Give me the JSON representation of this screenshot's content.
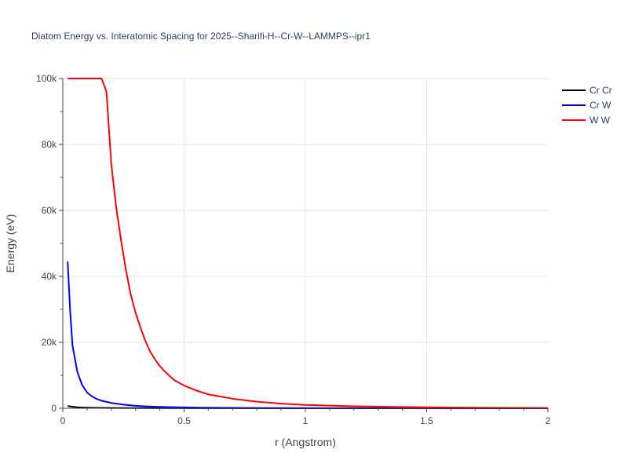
{
  "chart_data": {
    "type": "line",
    "title": "Diatom Energy vs. Interatomic Spacing for 2025--Sharifi-H--Cr-W--LAMMPS--ipr1",
    "xlabel": "r (Angstrom)",
    "ylabel": "Energy (eV)",
    "xlim": [
      0,
      2
    ],
    "ylim": [
      0,
      100000
    ],
    "x_ticks": [
      0,
      0.5,
      1,
      1.5,
      2
    ],
    "x_tick_labels": [
      "0",
      "0.5",
      "1",
      "1.5",
      "2"
    ],
    "y_ticks": [
      0,
      20000,
      40000,
      60000,
      80000,
      100000
    ],
    "y_tick_labels": [
      "0",
      "20k",
      "40k",
      "60k",
      "80k",
      "100k"
    ],
    "grid": true,
    "legend_position": "top-right",
    "series": [
      {
        "name": "Cr Cr",
        "color": "#000000",
        "x": [
          0.02,
          0.04,
          0.06,
          0.08,
          0.1,
          0.15,
          0.2,
          0.3,
          0.5,
          1.0,
          1.5,
          2.0
        ],
        "y": [
          700,
          450,
          300,
          220,
          170,
          110,
          80,
          50,
          25,
          8,
          3,
          1
        ]
      },
      {
        "name": "Cr W",
        "color": "#0000ff",
        "x": [
          0.02,
          0.03,
          0.04,
          0.06,
          0.08,
          0.1,
          0.12,
          0.14,
          0.16,
          0.2,
          0.25,
          0.3,
          0.35,
          0.4,
          0.5,
          0.6,
          0.8,
          1.0,
          1.5,
          2.0
        ],
        "y": [
          44500,
          30000,
          19000,
          11000,
          7000,
          4800,
          3600,
          2800,
          2300,
          1600,
          1100,
          750,
          550,
          420,
          270,
          180,
          90,
          50,
          15,
          5
        ]
      },
      {
        "name": "W W",
        "color": "#ff0000",
        "x": [
          0.02,
          0.05,
          0.1,
          0.15,
          0.16,
          0.18,
          0.19,
          0.2,
          0.22,
          0.24,
          0.26,
          0.28,
          0.3,
          0.32,
          0.34,
          0.36,
          0.38,
          0.4,
          0.42,
          0.44,
          0.46,
          0.5,
          0.55,
          0.6,
          0.7,
          0.8,
          0.9,
          1.0,
          1.2,
          1.4,
          1.6,
          1.8,
          2.0
        ],
        "y": [
          100000,
          100000,
          100000,
          100000,
          100000,
          96000,
          85000,
          74000,
          61000,
          51000,
          42000,
          34500,
          29000,
          24500,
          20500,
          17200,
          14800,
          12800,
          11200,
          9800,
          8500,
          6900,
          5400,
          4200,
          2900,
          2000,
          1400,
          1000,
          600,
          380,
          240,
          150,
          90
        ]
      }
    ]
  }
}
